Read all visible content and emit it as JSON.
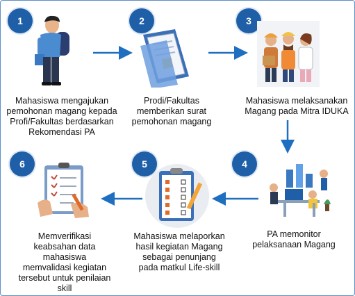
{
  "accent_color": "#1f5fa8",
  "arrow_color": "#1f6fc0",
  "steps": [
    {
      "number": "1",
      "text": "Mahasiswa mengajukan pemohonan magang kepada Profi/Fakultas berdasarkan Rekomendasi PA",
      "lines": [
        "Mahasiswa mengajukan",
        "pemohonan magang kepada",
        "Profi/Fakultas berdasarkan",
        "Rekomendasi PA"
      ],
      "icon": "student-with-backpack-icon"
    },
    {
      "number": "2",
      "text": "Prodi/Fakultas memberikan surat pemohonan magang",
      "lines": [
        "Prodi/Fakultas",
        "memberikan surat",
        "pemohonan magang"
      ],
      "icon": "document-folder-icon"
    },
    {
      "number": "3",
      "text": "Mahasiswa melaksanakan Magang pada Mitra IDUKA",
      "lines": [
        "Mahasiswa melaksanakan",
        "Magang pada Mitra IDUKA"
      ],
      "icon": "workers-group-icon"
    },
    {
      "number": "4",
      "text": "PA memonitor pelaksanaan Magang",
      "lines": [
        "PA memonitor",
        "pelaksanaan Magang"
      ],
      "icon": "monitoring-desk-icon"
    },
    {
      "number": "5",
      "text": "Mahasiswa melaporkan hasil kegiatan Magang sebagai penunjang pada matkul Life-skill",
      "lines": [
        "Mahasiswa melaporkan",
        "hasil kegiatan Magang",
        "sebagai penunjang",
        "pada matkul Life-skill"
      ],
      "icon": "report-checklist-icon"
    },
    {
      "number": "6",
      "text": "Memverifikasi keabsahan data mahasiswa memvalidasi kegiatan tersebut untuk penilaian skill",
      "lines": [
        "Memverifikasi",
        "keabsahan data",
        "mahasiswa",
        "memvalidasi kegiatan",
        "tersebut untuk penilaian",
        "skill"
      ],
      "icon": "clipboard-verify-icon"
    }
  ]
}
